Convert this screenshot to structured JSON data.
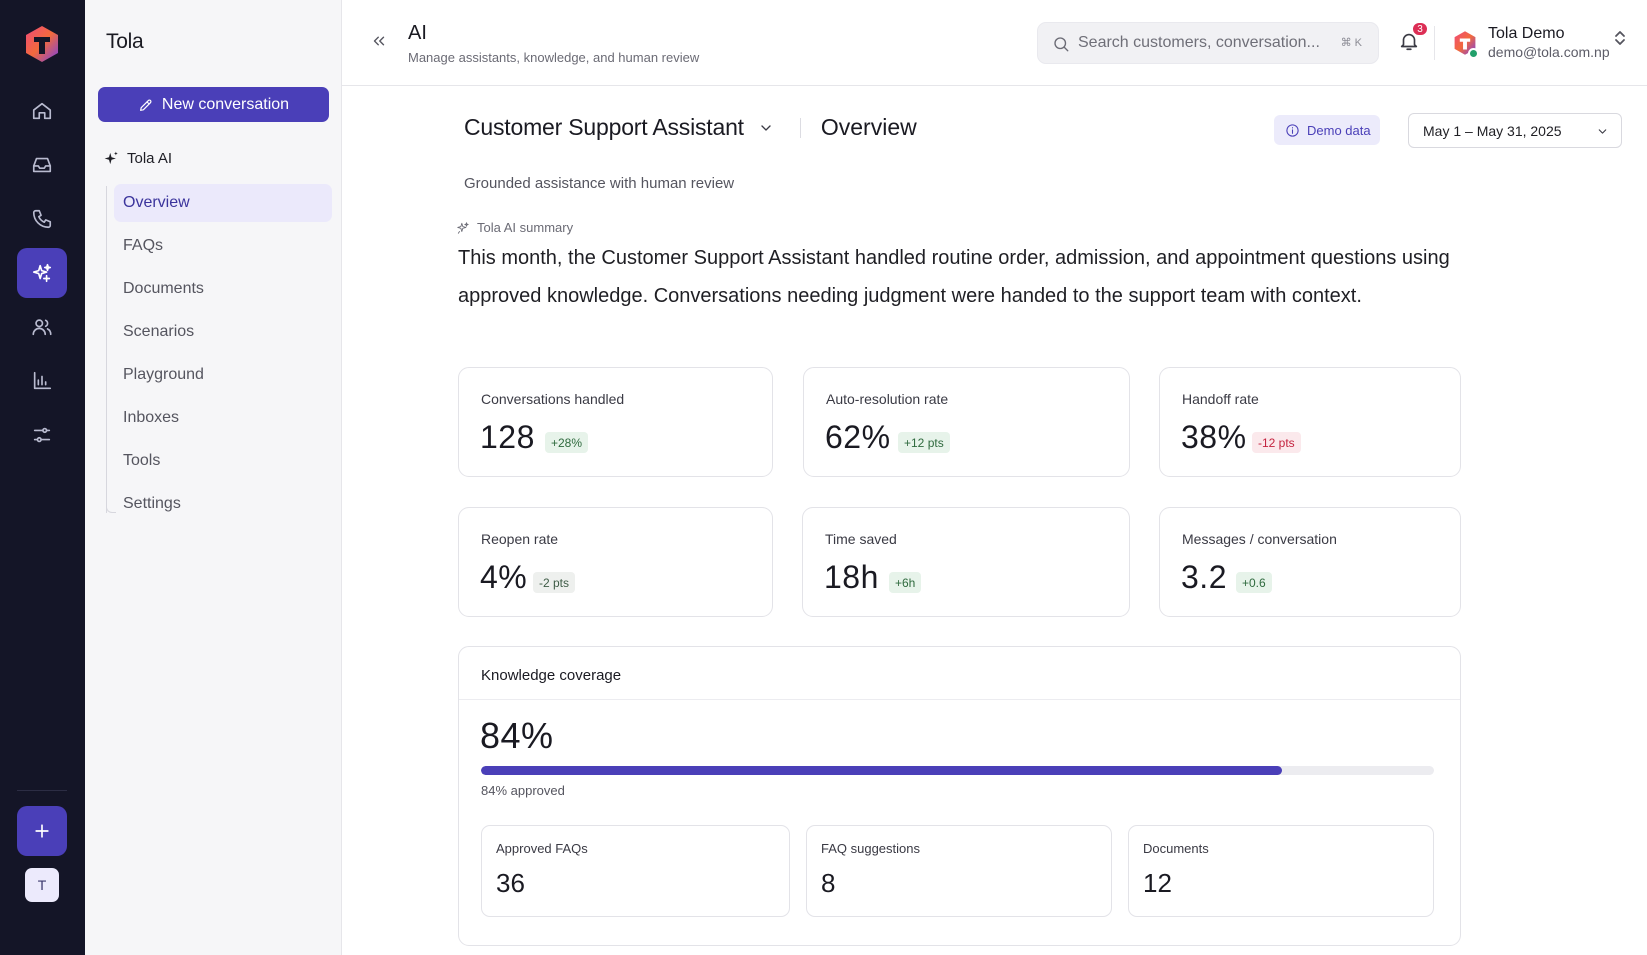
{
  "app": {
    "brand": "Tola",
    "accent_color": "#4a3fb8",
    "rail_icons": [
      "home-icon",
      "inbox-icon",
      "phone-icon",
      "ai-sparkle-icon",
      "users-icon",
      "bar-chart-icon",
      "sliders-icon"
    ],
    "rail_avatar_initial": "T"
  },
  "sidebar": {
    "new_conversation_label": "New conversation",
    "section_label": "Tola AI",
    "items": [
      {
        "label": "Overview",
        "active": true
      },
      {
        "label": "FAQs",
        "active": false
      },
      {
        "label": "Documents",
        "active": false
      },
      {
        "label": "Scenarios",
        "active": false
      },
      {
        "label": "Playground",
        "active": false
      },
      {
        "label": "Inboxes",
        "active": false
      },
      {
        "label": "Tools",
        "active": false
      },
      {
        "label": "Settings",
        "active": false
      }
    ]
  },
  "header": {
    "title": "AI",
    "subtitle": "Manage assistants, knowledge, and human review",
    "search_placeholder": "Search customers, conversation...",
    "search_shortcut": "⌘ K",
    "notification_count": "3",
    "user_name": "Tola Demo",
    "user_email": "demo@tola.com.np"
  },
  "main": {
    "assistant_name": "Customer Support Assistant",
    "view_title": "Overview",
    "demo_badge": "Demo data",
    "date_range": "May 1 – May 31, 2025",
    "tagline": "Grounded assistance with human review",
    "summary_label": "Tola AI summary",
    "summary_text": "This month, the Customer Support Assistant handled routine order, admission, and appointment questions using approved knowledge. Conversations needing judgment were handed to the support team with context.",
    "metrics": [
      {
        "label": "Conversations handled",
        "value": "128",
        "delta": "+28%",
        "tone": "pos"
      },
      {
        "label": "Auto-resolution rate",
        "value": "62%",
        "delta": "+12 pts",
        "tone": "pos"
      },
      {
        "label": "Handoff rate",
        "value": "38%",
        "delta": "-12 pts",
        "tone": "neg"
      },
      {
        "label": "Reopen rate",
        "value": "4%",
        "delta": "-2 pts",
        "tone": "neu"
      },
      {
        "label": "Time saved",
        "value": "18h",
        "delta": "+6h",
        "tone": "pos"
      },
      {
        "label": "Messages / conversation",
        "value": "3.2",
        "delta": "+0.6",
        "tone": "pos"
      }
    ],
    "knowledge": {
      "title": "Knowledge coverage",
      "value": "84%",
      "progress_percent": 84,
      "caption": "84% approved",
      "stats": [
        {
          "label": "Approved FAQs",
          "value": "36"
        },
        {
          "label": "FAQ suggestions",
          "value": "8"
        },
        {
          "label": "Documents",
          "value": "12"
        }
      ]
    }
  }
}
